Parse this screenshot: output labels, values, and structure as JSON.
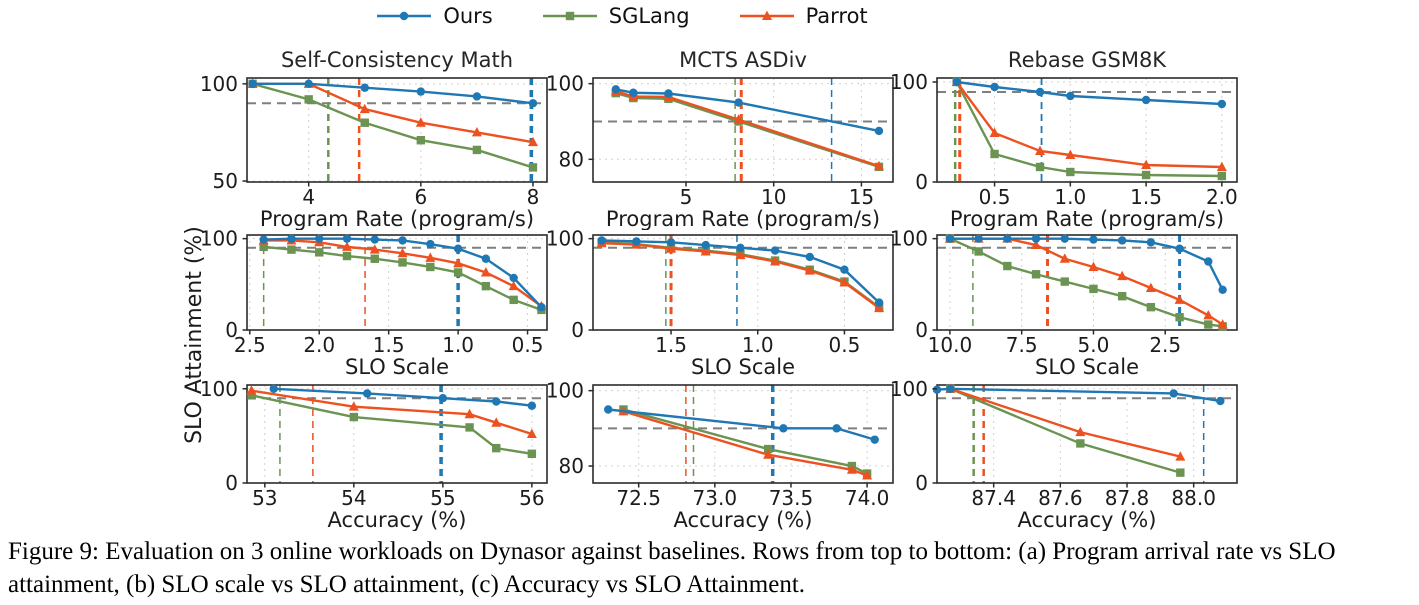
{
  "figure": {
    "ylabel": "SLO Attainment (%)",
    "caption": "Figure 9: Evaluation on 3 online workloads on Dynasor against baselines. Rows from top to bottom: (a) Program arrival rate vs SLO attainment, (b) SLO scale vs SLO attainment, (c) Accuracy vs SLO Attainment.",
    "legend": [
      "Ours",
      "SGLang",
      "Parrot"
    ],
    "series_styles": {
      "Ours": {
        "color": "#1f77b4",
        "marker": "circle"
      },
      "SGLang": {
        "color": "#6b9452",
        "marker": "square"
      },
      "Parrot": {
        "color": "#ee5120",
        "marker": "triangle"
      }
    },
    "grid_color": "#d0d0d0",
    "threshold_color": "#7f7f7f"
  },
  "chart_data": [
    {
      "type": "line",
      "title": "Self-Consistency Math",
      "xlabel": "Program Rate (program/s)",
      "xlim": [
        2.9,
        8.25
      ],
      "ylim": [
        49.5,
        103
      ],
      "hline": 90,
      "xticks": [
        {
          "v": 4,
          "t": "4"
        },
        {
          "v": 6,
          "t": "6"
        },
        {
          "v": 8,
          "t": "8"
        }
      ],
      "yticks": [
        {
          "v": 50,
          "t": "50"
        },
        {
          "v": 100,
          "t": "100"
        }
      ],
      "vlines": [
        {
          "series": "SGLang",
          "x": 4.35,
          "w": 2.5
        },
        {
          "series": "Parrot",
          "x": 4.9,
          "w": 2.5
        },
        {
          "series": "Ours",
          "x": 7.97,
          "w": 3.5
        }
      ],
      "series": [
        {
          "name": "SGLang",
          "x": [
            3,
            4,
            5,
            6,
            7,
            8
          ],
          "y": [
            100,
            92,
            80,
            71,
            66,
            57
          ]
        },
        {
          "name": "Parrot",
          "x": [
            3,
            4,
            5,
            6,
            7,
            8
          ],
          "y": [
            100,
            100,
            87,
            80,
            75,
            70
          ]
        },
        {
          "name": "Ours",
          "x": [
            3,
            4,
            5,
            6,
            7,
            8
          ],
          "y": [
            100,
            100,
            98,
            96,
            93.5,
            90
          ]
        }
      ]
    },
    {
      "type": "line",
      "title": "MCTS ASDiv",
      "xlabel": "Program Rate (program/s)",
      "xlim": [
        -0.3,
        16.8
      ],
      "ylim": [
        74,
        101.5
      ],
      "hline": 90,
      "xticks": [
        {
          "v": 5,
          "t": "5"
        },
        {
          "v": 10,
          "t": "10"
        },
        {
          "v": 15,
          "t": "15"
        }
      ],
      "yticks": [
        {
          "v": 80,
          "t": "80"
        },
        {
          "v": 100,
          "t": "100"
        }
      ],
      "vlines": [
        {
          "series": "SGLang",
          "x": 7.8,
          "w": 1.5
        },
        {
          "series": "Parrot",
          "x": 8.15,
          "w": 3
        },
        {
          "series": "Ours",
          "x": 13.3,
          "w": 1.5
        }
      ],
      "series": [
        {
          "name": "SGLang",
          "x": [
            1,
            2,
            4,
            8,
            16
          ],
          "y": [
            97.5,
            96.2,
            96,
            90,
            78
          ]
        },
        {
          "name": "Parrot",
          "x": [
            1,
            2,
            4,
            8,
            16
          ],
          "y": [
            98,
            96.6,
            96.5,
            90.5,
            78.2
          ]
        },
        {
          "name": "Ours",
          "x": [
            1,
            2,
            4,
            8,
            16
          ],
          "y": [
            98.5,
            97.6,
            97.4,
            95,
            87.5
          ]
        }
      ]
    },
    {
      "type": "line",
      "title": "Rebase GSM8K",
      "xlabel": "Program Rate (program/s)",
      "xlim": [
        0.12,
        2.1
      ],
      "ylim": [
        0,
        104
      ],
      "hline": 90,
      "xticks": [
        {
          "v": 0.5,
          "t": "0.5"
        },
        {
          "v": 1.0,
          "t": "1.0"
        },
        {
          "v": 1.5,
          "t": "1.5"
        },
        {
          "v": 2.0,
          "t": "2.0"
        }
      ],
      "yticks": [
        {
          "v": 0,
          "t": "0"
        },
        {
          "v": 100,
          "t": "100"
        }
      ],
      "vlines": [
        {
          "series": "SGLang",
          "x": 0.24,
          "w": 2.5
        },
        {
          "series": "Parrot",
          "x": 0.27,
          "w": 3
        },
        {
          "series": "Ours",
          "x": 0.81,
          "w": 1.8
        }
      ],
      "series": [
        {
          "name": "SGLang",
          "x": [
            0.25,
            0.5,
            0.8,
            1.0,
            1.5,
            2.0
          ],
          "y": [
            100,
            28,
            15,
            10,
            7,
            6
          ]
        },
        {
          "name": "Parrot",
          "x": [
            0.25,
            0.5,
            0.8,
            1.0,
            1.5,
            2.0
          ],
          "y": [
            100,
            49,
            31,
            27,
            17,
            15
          ]
        },
        {
          "name": "Ours",
          "x": [
            0.25,
            0.5,
            0.8,
            1.0,
            1.5,
            2.0
          ],
          "y": [
            100,
            95,
            90,
            86,
            82,
            78
          ]
        }
      ]
    },
    {
      "type": "line",
      "title": "",
      "xlabel": "SLO Scale",
      "xlim": [
        2.52,
        0.36
      ],
      "ylim": [
        0,
        104
      ],
      "hline": 90,
      "xticks": [
        {
          "v": 2.5,
          "t": "2.5"
        },
        {
          "v": 2.0,
          "t": "2.0"
        },
        {
          "v": 1.5,
          "t": "1.5"
        },
        {
          "v": 1.0,
          "t": "1.0"
        },
        {
          "v": 0.5,
          "t": "0.5"
        }
      ],
      "yticks": [
        {
          "v": 0,
          "t": "0"
        },
        {
          "v": 100,
          "t": "100"
        }
      ],
      "vlines": [
        {
          "series": "SGLang",
          "x": 2.4,
          "w": 1.5
        },
        {
          "series": "Parrot",
          "x": 1.67,
          "w": 1.5
        },
        {
          "series": "Ours",
          "x": 1.0,
          "w": 3.5
        }
      ],
      "series": [
        {
          "name": "SGLang",
          "x": [
            2.4,
            2.2,
            2.0,
            1.8,
            1.6,
            1.4,
            1.2,
            1.0,
            0.8,
            0.6,
            0.4
          ],
          "y": [
            91,
            88,
            85,
            81,
            78,
            74,
            69,
            63,
            48,
            33,
            22
          ]
        },
        {
          "name": "Parrot",
          "x": [
            2.4,
            2.2,
            2.0,
            1.8,
            1.6,
            1.4,
            1.2,
            1.0,
            0.8,
            0.6,
            0.4
          ],
          "y": [
            98,
            98,
            96,
            91,
            88,
            84,
            79,
            73,
            63,
            48,
            26
          ]
        },
        {
          "name": "Ours",
          "x": [
            2.4,
            2.2,
            2.0,
            1.8,
            1.6,
            1.4,
            1.2,
            1.0,
            0.8,
            0.6,
            0.4
          ],
          "y": [
            99,
            100,
            100,
            100,
            99,
            98,
            94,
            89,
            78,
            57,
            25
          ]
        }
      ]
    },
    {
      "type": "line",
      "title": "",
      "xlabel": "SLO Scale",
      "xlim": [
        1.95,
        0.22
      ],
      "ylim": [
        0,
        104
      ],
      "hline": 90,
      "xticks": [
        {
          "v": 1.5,
          "t": "1.5"
        },
        {
          "v": 1.0,
          "t": "1.0"
        },
        {
          "v": 0.5,
          "t": "0.5"
        }
      ],
      "yticks": [
        {
          "v": 0,
          "t": "0"
        },
        {
          "v": 100,
          "t": "100"
        }
      ],
      "vlines": [
        {
          "series": "SGLang",
          "x": 1.53,
          "w": 1.5
        },
        {
          "series": "Parrot",
          "x": 1.5,
          "w": 3
        },
        {
          "series": "Ours",
          "x": 1.12,
          "w": 1.5
        }
      ],
      "series": [
        {
          "name": "SGLang",
          "x": [
            1.9,
            1.7,
            1.5,
            1.3,
            1.1,
            0.9,
            0.7,
            0.5,
            0.3
          ],
          "y": [
            96,
            94,
            90,
            87,
            83,
            76,
            66,
            53,
            25
          ]
        },
        {
          "name": "Parrot",
          "x": [
            1.9,
            1.7,
            1.5,
            1.3,
            1.1,
            0.9,
            0.7,
            0.5,
            0.3
          ],
          "y": [
            95,
            93.5,
            89,
            86,
            82,
            75,
            65,
            52,
            24
          ]
        },
        {
          "name": "Ours",
          "x": [
            1.9,
            1.7,
            1.5,
            1.3,
            1.1,
            0.9,
            0.7,
            0.5,
            0.3
          ],
          "y": [
            98,
            97,
            96,
            93,
            90,
            87,
            80,
            66,
            30
          ]
        }
      ]
    },
    {
      "type": "line",
      "title": "",
      "xlabel": "SLO Scale",
      "xlim": [
        10.45,
        0.0
      ],
      "ylim": [
        0,
        104
      ],
      "hline": 90,
      "xticks": [
        {
          "v": 10.0,
          "t": "10.0"
        },
        {
          "v": 7.5,
          "t": "7.5"
        },
        {
          "v": 5.0,
          "t": "5.0"
        },
        {
          "v": 2.5,
          "t": "2.5"
        }
      ],
      "yticks": [
        {
          "v": 0,
          "t": "0"
        },
        {
          "v": 100,
          "t": "100"
        }
      ],
      "vlines": [
        {
          "series": "SGLang",
          "x": 9.2,
          "w": 1.5
        },
        {
          "series": "Parrot",
          "x": 6.6,
          "w": 3
        },
        {
          "series": "Ours",
          "x": 2.0,
          "w": 3
        }
      ],
      "series": [
        {
          "name": "SGLang",
          "x": [
            10,
            9,
            8,
            7,
            6,
            5,
            4,
            3,
            2,
            1,
            0.5
          ],
          "y": [
            100,
            86,
            70,
            61,
            53,
            45,
            37,
            25,
            14,
            6,
            4
          ]
        },
        {
          "name": "Parrot",
          "x": [
            10,
            9,
            8,
            7,
            6,
            5,
            4,
            3,
            2,
            1,
            0.5
          ],
          "y": [
            100,
            100,
            100,
            93,
            78,
            69,
            59,
            46,
            33,
            16,
            6
          ]
        },
        {
          "name": "Ours",
          "x": [
            10,
            9,
            8,
            7,
            6,
            5,
            4,
            3,
            2,
            1,
            0.5
          ],
          "y": [
            100,
            100,
            100,
            100,
            100,
            99,
            98,
            96,
            89,
            75,
            44
          ]
        }
      ]
    },
    {
      "type": "line",
      "title": "",
      "xlabel": "Accuracy (%)",
      "xlim": [
        52.8,
        56.17
      ],
      "ylim": [
        0,
        104
      ],
      "hline": 90,
      "xticks": [
        {
          "v": 53,
          "t": "53"
        },
        {
          "v": 54,
          "t": "54"
        },
        {
          "v": 55,
          "t": "55"
        },
        {
          "v": 56,
          "t": "56"
        }
      ],
      "yticks": [
        {
          "v": 0,
          "t": "0"
        },
        {
          "v": 100,
          "t": "100"
        }
      ],
      "vlines": [
        {
          "series": "SGLang",
          "x": 53.17,
          "w": 1.5
        },
        {
          "series": "Parrot",
          "x": 53.54,
          "w": 1.5
        },
        {
          "series": "Ours",
          "x": 54.98,
          "w": 3.5
        }
      ],
      "series": [
        {
          "name": "SGLang",
          "x": [
            52.85,
            54.0,
            55.3,
            55.6,
            56.0
          ],
          "y": [
            93,
            70,
            59,
            37,
            31
          ]
        },
        {
          "name": "Parrot",
          "x": [
            52.85,
            54.0,
            55.3,
            55.6,
            56.0
          ],
          "y": [
            98,
            81,
            73,
            64,
            52
          ]
        },
        {
          "name": "Ours",
          "x": [
            53.1,
            54.15,
            55.0,
            55.6,
            56.0
          ],
          "y": [
            100,
            95,
            90,
            86.5,
            82
          ]
        }
      ]
    },
    {
      "type": "line",
      "title": "",
      "xlabel": "Accuracy (%)",
      "xlim": [
        72.2,
        74.17
      ],
      "ylim": [
        75.5,
        101.5
      ],
      "hline": 90,
      "xticks": [
        {
          "v": 72.5,
          "t": "72.5"
        },
        {
          "v": 73.0,
          "t": "73.0"
        },
        {
          "v": 73.5,
          "t": "73.5"
        },
        {
          "v": 74.0,
          "t": "74.0"
        }
      ],
      "yticks": [
        {
          "v": 80,
          "t": "80"
        },
        {
          "v": 100,
          "t": "100"
        }
      ],
      "vlines": [
        {
          "series": "Parrot",
          "x": 72.81,
          "w": 1.5
        },
        {
          "series": "SGLang",
          "x": 72.86,
          "w": 1.5
        },
        {
          "series": "Ours",
          "x": 73.38,
          "w": 3.5
        }
      ],
      "series": [
        {
          "name": "SGLang",
          "x": [
            72.4,
            73.35,
            73.9,
            74.0
          ],
          "y": [
            95,
            84.5,
            80,
            78
          ]
        },
        {
          "name": "Parrot",
          "x": [
            72.4,
            73.35,
            73.9,
            74.0
          ],
          "y": [
            94.5,
            83,
            79,
            77.5
          ]
        },
        {
          "name": "Ours",
          "x": [
            72.3,
            73.45,
            73.8,
            74.05
          ],
          "y": [
            95,
            90,
            90,
            87
          ]
        }
      ]
    },
    {
      "type": "line",
      "title": "",
      "xlabel": "Accuracy (%)",
      "xlim": [
        87.23,
        88.13
      ],
      "ylim": [
        0,
        104
      ],
      "hline": 90,
      "xticks": [
        {
          "v": 87.4,
          "t": "87.4"
        },
        {
          "v": 87.6,
          "t": "87.6"
        },
        {
          "v": 87.8,
          "t": "87.8"
        },
        {
          "v": 88.0,
          "t": "88.0"
        }
      ],
      "yticks": [
        {
          "v": 0,
          "t": "0"
        },
        {
          "v": 100,
          "t": "100"
        }
      ],
      "vlines": [
        {
          "series": "SGLang",
          "x": 87.34,
          "w": 2.5
        },
        {
          "series": "Parrot",
          "x": 87.37,
          "w": 2.5
        },
        {
          "series": "Ours",
          "x": 88.03,
          "w": 1.5
        }
      ],
      "series": [
        {
          "name": "SGLang",
          "x": [
            87.27,
            87.66,
            87.96
          ],
          "y": [
            100,
            42,
            11
          ]
        },
        {
          "name": "Parrot",
          "x": [
            87.27,
            87.66,
            87.96
          ],
          "y": [
            100,
            54,
            28
          ]
        },
        {
          "name": "Ours",
          "x": [
            87.23,
            87.27,
            87.94,
            88.08
          ],
          "y": [
            99,
            100,
            95,
            87
          ]
        }
      ]
    }
  ]
}
